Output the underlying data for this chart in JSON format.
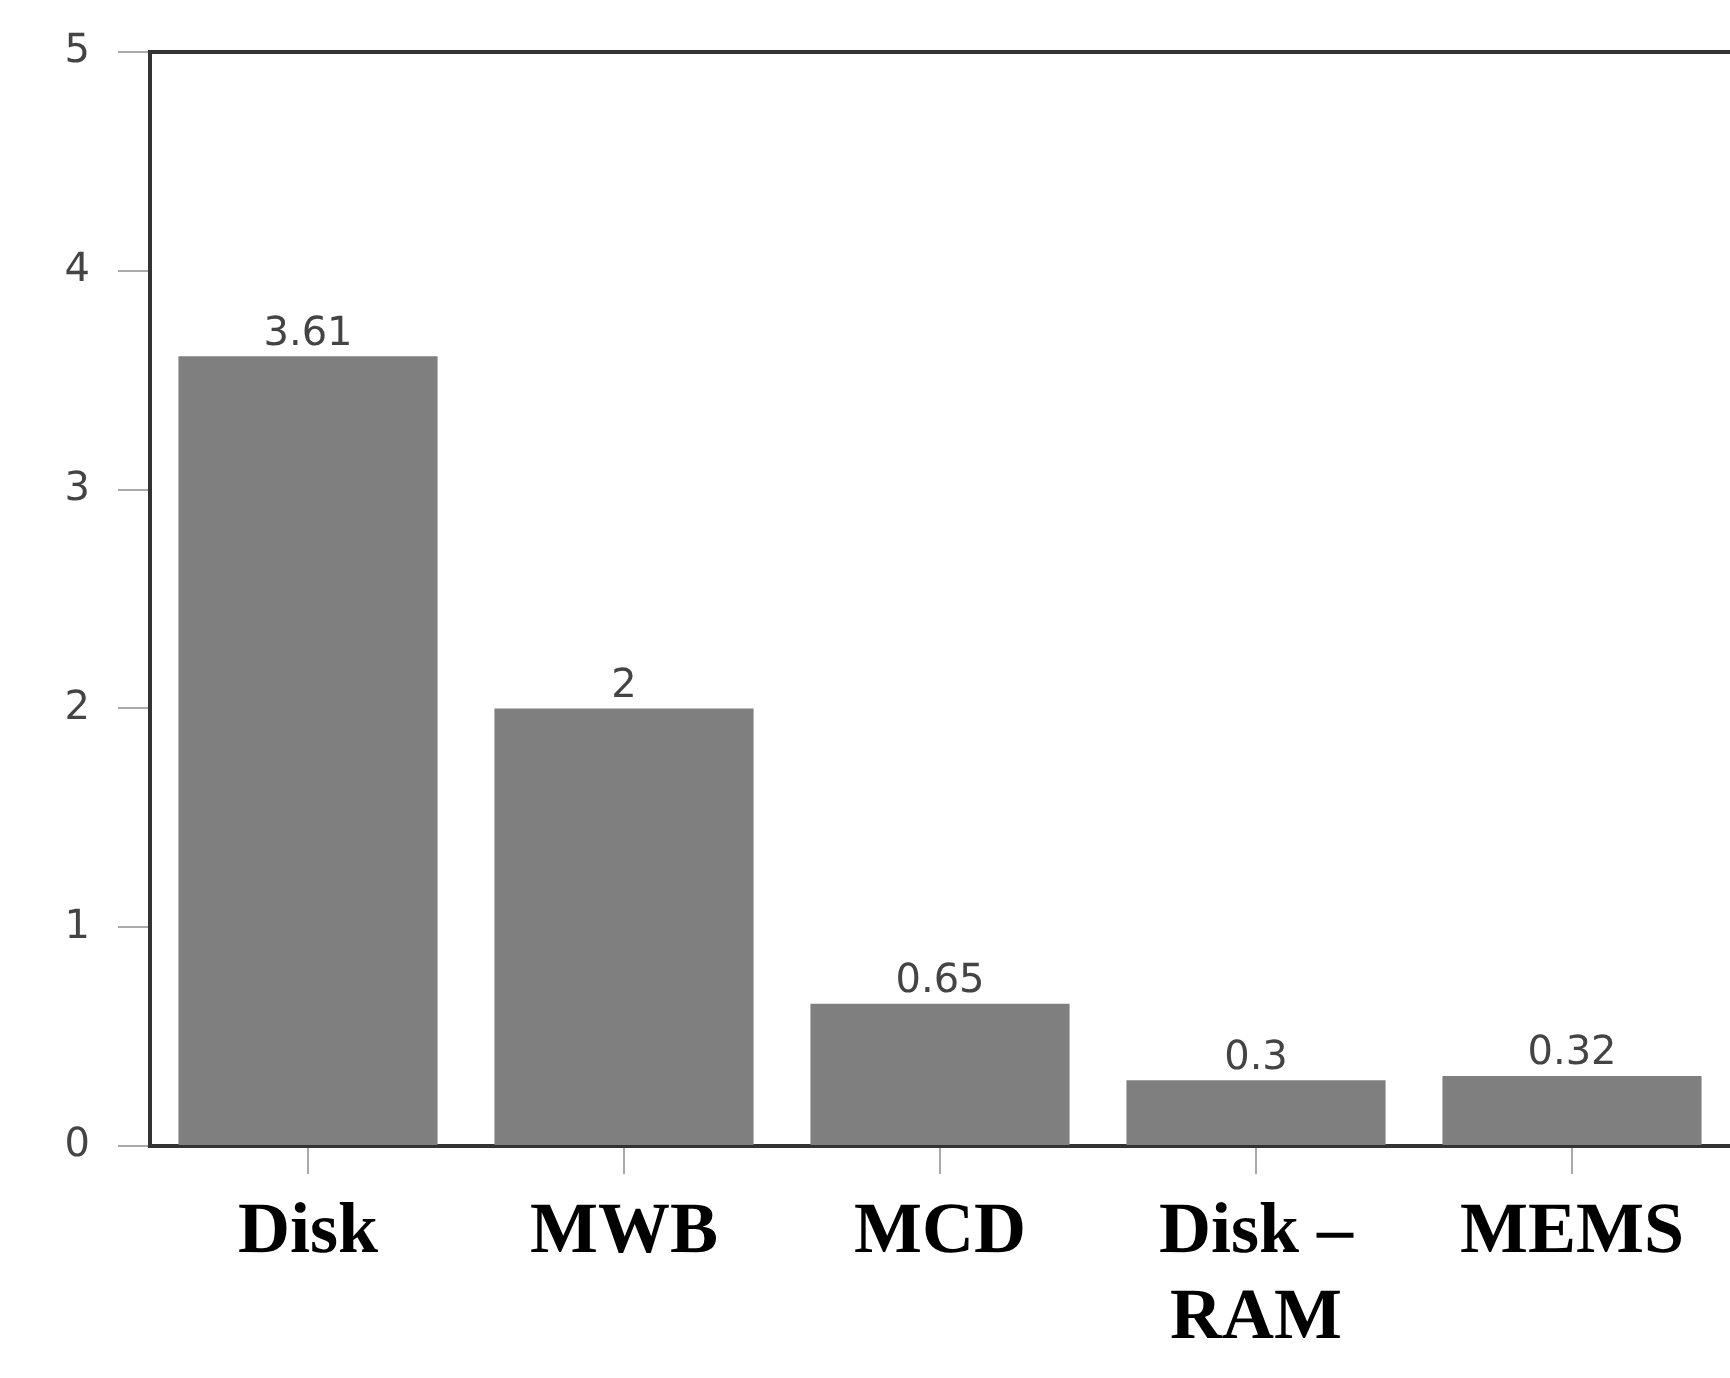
{
  "chart_data": {
    "type": "bar",
    "categories": [
      "Disk",
      "MWB",
      "MCD",
      "Disk – RAM",
      "MEMS"
    ],
    "values": [
      3.61,
      2,
      0.65,
      0.3,
      0.32
    ],
    "color": "#7f7f7f",
    "ylim": [
      0,
      5
    ],
    "yticks": [
      0,
      1,
      2,
      3,
      4,
      5
    ],
    "data_labels": true,
    "grid": false,
    "legend": false
  }
}
